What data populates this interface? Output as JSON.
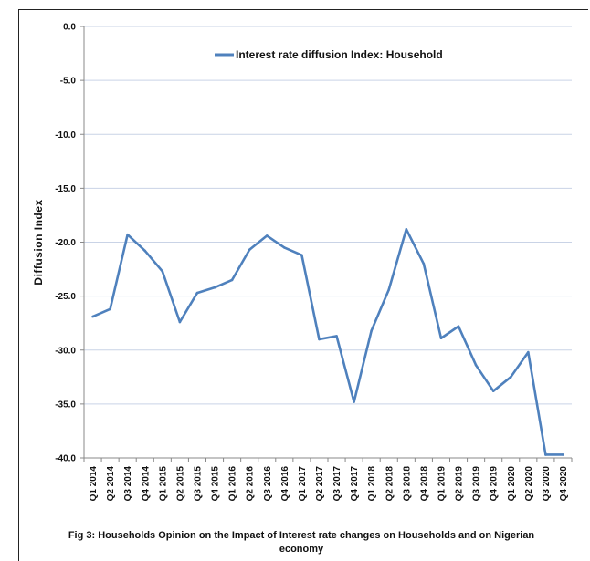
{
  "chart_data": {
    "type": "line",
    "ylabel": "Diffusion Index",
    "ylim": [
      -40,
      0
    ],
    "yticks": [
      "0.0",
      "-5.0",
      "-10.0",
      "-15.0",
      "-20.0",
      "-25.0",
      "-30.0",
      "-35.0",
      "-40.0"
    ],
    "grid": true,
    "legend_position": "top-center",
    "categories": [
      "Q1 2014",
      "Q2 2014",
      "Q3 2014",
      "Q4 2014",
      "Q1 2015",
      "Q2 2015",
      "Q3 2015",
      "Q4 2015",
      "Q1 2016",
      "Q2 2016",
      "Q3 2016",
      "Q4 2016",
      "Q1 2017",
      "Q2 2017",
      "Q3 2017",
      "Q4 2017",
      "Q1 2018",
      "Q2 2018",
      "Q3 2018",
      "Q4 2018",
      "Q1 2019",
      "Q2 2019",
      "Q3 2019",
      "Q4 2019",
      "Q1 2020",
      "Q2 2020",
      "Q3 2020",
      "Q4 2020"
    ],
    "series": [
      {
        "name": "Interest rate diffusion Index: Household",
        "color": "#4F81BD",
        "values": [
          -26.9,
          -26.2,
          -19.3,
          -20.8,
          -22.7,
          -27.4,
          -24.7,
          -24.2,
          -23.5,
          -20.7,
          -19.4,
          -20.5,
          -21.2,
          -29.0,
          -28.7,
          -34.8,
          -28.2,
          -24.4,
          -18.8,
          -22.0,
          -28.9,
          -27.8,
          -31.4,
          -33.8,
          -32.5,
          -30.2,
          -39.7,
          -39.7
        ]
      }
    ],
    "caption": "Fig 3: Households Opinion on the Impact of Interest rate changes on Households and on Nigerian economy"
  }
}
